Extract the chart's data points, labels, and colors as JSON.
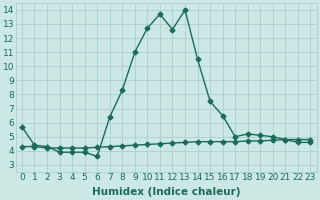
{
  "main_x": [
    0,
    1,
    2,
    3,
    4,
    5,
    6,
    7,
    8,
    9,
    10,
    11,
    12,
    13,
    14,
    15,
    16,
    17,
    18,
    19,
    20,
    21,
    22,
    23
  ],
  "main_y": [
    5.7,
    4.4,
    4.3,
    3.9,
    3.9,
    3.9,
    3.6,
    6.4,
    8.3,
    11.0,
    12.7,
    13.7,
    12.6,
    14.0,
    10.5,
    7.5,
    6.5,
    5.0,
    5.2,
    5.1,
    5.0,
    4.8,
    4.6,
    4.6
  ],
  "flat_x": [
    0,
    1,
    2,
    3,
    4,
    5,
    6,
    7,
    8,
    9,
    10,
    11,
    12,
    13,
    14,
    15,
    16,
    17,
    18,
    19,
    20,
    21,
    22,
    23
  ],
  "flat_y": [
    4.3,
    4.3,
    4.2,
    4.2,
    4.2,
    4.2,
    4.25,
    4.3,
    4.35,
    4.4,
    4.45,
    4.5,
    4.55,
    4.6,
    4.65,
    4.65,
    4.65,
    4.65,
    4.7,
    4.7,
    4.75,
    4.8,
    4.8,
    4.8
  ],
  "line_color": "#1a6b5a",
  "bg_color": "#cce8e4",
  "grid_color": "#aacfca",
  "xlabel": "Humidex (Indice chaleur)",
  "ylim": [
    2.5,
    14.5
  ],
  "xlim": [
    -0.5,
    23.5
  ],
  "yticks": [
    3,
    4,
    5,
    6,
    7,
    8,
    9,
    10,
    11,
    12,
    13,
    14
  ],
  "xticks": [
    0,
    1,
    2,
    3,
    4,
    5,
    6,
    7,
    8,
    9,
    10,
    11,
    12,
    13,
    14,
    15,
    16,
    17,
    18,
    19,
    20,
    21,
    22,
    23
  ],
  "xlabel_fontsize": 7.5,
  "tick_fontsize": 6.5,
  "marker_size": 2.5,
  "line_width": 1.0
}
